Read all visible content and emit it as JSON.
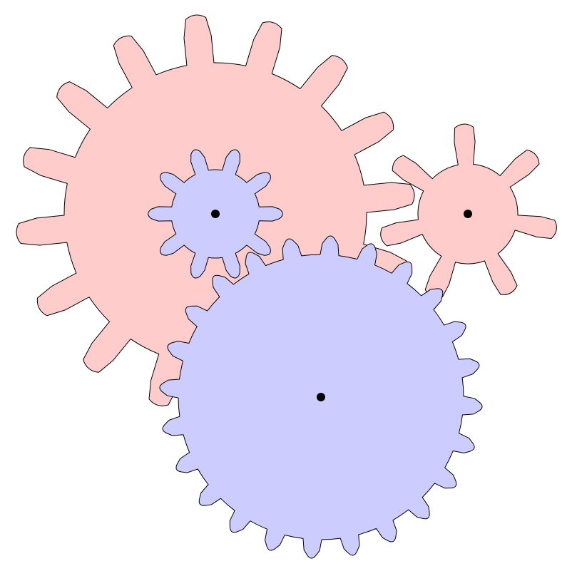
{
  "colors": {
    "background": "#ffffff",
    "red_gear_fill": "#ffcccc",
    "blue_gear_fill": "#ccccff",
    "gear_stroke": "#000000",
    "axle_fill": "#000000"
  },
  "gears": [
    {
      "id": "large-red-gear",
      "color": "red",
      "teeth": 16
    },
    {
      "id": "small-red-gear",
      "color": "red",
      "teeth": 7
    },
    {
      "id": "large-blue-gear",
      "color": "blue",
      "teeth": 24
    },
    {
      "id": "small-blue-gear",
      "color": "blue",
      "teeth": 10
    }
  ]
}
